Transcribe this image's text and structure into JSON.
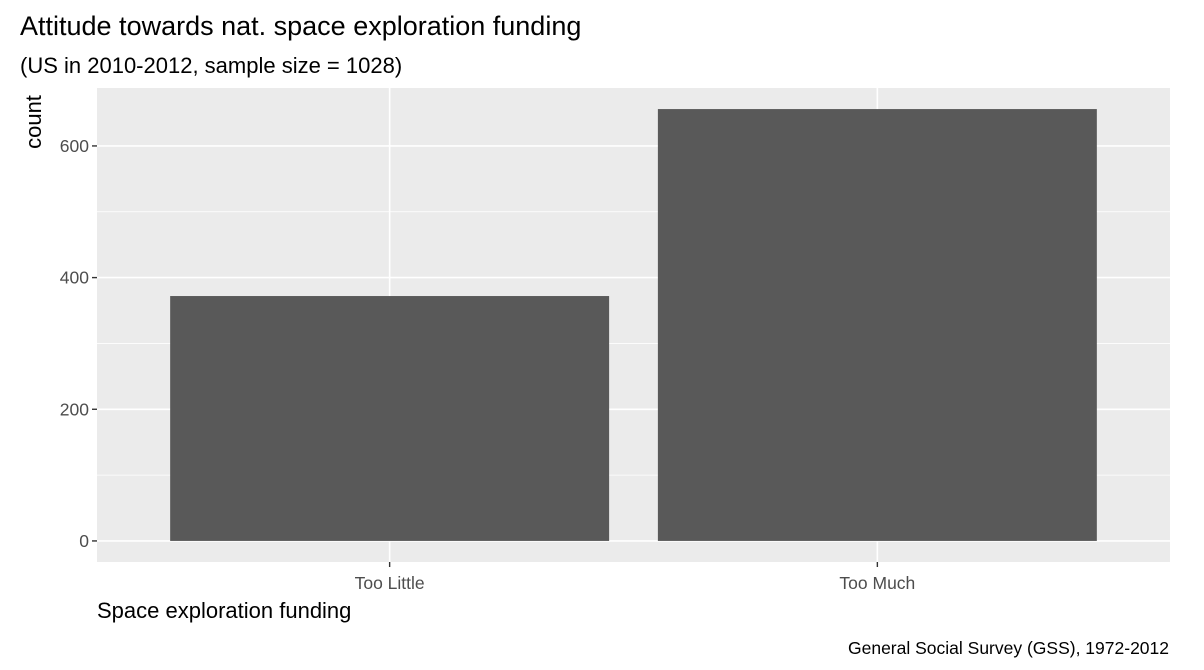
{
  "chart_data": {
    "type": "bar",
    "title": "Attitude towards nat. space exploration funding",
    "subtitle": "(US in 2010-2012, sample size = 1028)",
    "xlabel": "Space exploration funding",
    "ylabel": "count",
    "caption": "General Social Survey (GSS), 1972-2012",
    "categories": [
      "Too Little",
      "Too Much"
    ],
    "values": [
      372,
      656
    ],
    "ylim": [
      -32,
      688
    ],
    "yticks": [
      0,
      200,
      400,
      600
    ],
    "ytick_labels": [
      "0",
      "200",
      "400",
      "600"
    ],
    "grid": true,
    "colors": {
      "bar": "#595959",
      "panel": "#ebebeb",
      "grid": "#ffffff",
      "tick_text": "#4d4d4d",
      "tick_mark": "#333333"
    }
  }
}
